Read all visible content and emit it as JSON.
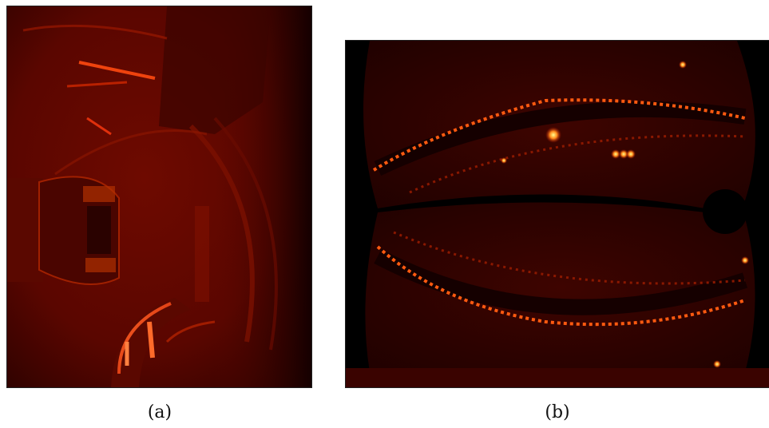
{
  "figure": {
    "panels": [
      {
        "label": "(a)",
        "description_icon": "camera-view-icon"
      },
      {
        "label": "(b)",
        "description_icon": "camera-view-icon"
      }
    ]
  },
  "colors": {
    "colormap_dark": "#000000",
    "colormap_mid": "#8b0000",
    "colormap_bright": "#ff3300",
    "colormap_peak": "#ffff80"
  }
}
